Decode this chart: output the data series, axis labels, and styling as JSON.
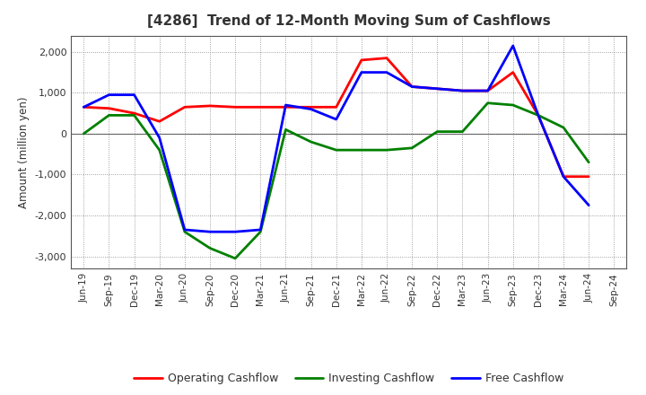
{
  "title": "[4286]  Trend of 12-Month Moving Sum of Cashflows",
  "ylabel": "Amount (million yen)",
  "x_labels": [
    "Jun-19",
    "Sep-19",
    "Dec-19",
    "Mar-20",
    "Jun-20",
    "Sep-20",
    "Dec-20",
    "Mar-21",
    "Jun-21",
    "Sep-21",
    "Dec-21",
    "Mar-22",
    "Jun-22",
    "Sep-22",
    "Dec-22",
    "Mar-23",
    "Jun-23",
    "Sep-23",
    "Dec-23",
    "Mar-24",
    "Jun-24",
    "Sep-24"
  ],
  "operating_cashflow": [
    650,
    620,
    500,
    300,
    650,
    680,
    650,
    650,
    650,
    650,
    650,
    1800,
    1850,
    1150,
    1100,
    1050,
    1050,
    1500,
    450,
    -1050,
    -1050,
    null
  ],
  "investing_cashflow": [
    0,
    450,
    450,
    -400,
    -2400,
    -2800,
    -3050,
    -2400,
    100,
    -200,
    -400,
    -400,
    -400,
    -350,
    50,
    50,
    750,
    700,
    450,
    150,
    -700,
    null
  ],
  "free_cashflow": [
    650,
    950,
    950,
    -100,
    -2350,
    -2400,
    -2400,
    -2350,
    700,
    600,
    350,
    1500,
    1500,
    1150,
    1100,
    1050,
    1050,
    2150,
    450,
    -1050,
    -1750,
    null
  ],
  "line_colors": {
    "operating": "#ff0000",
    "investing": "#008000",
    "free": "#0000ff"
  },
  "line_width": 2.0,
  "ylim": [
    -3300,
    2400
  ],
  "yticks": [
    -3000,
    -2000,
    -1000,
    0,
    1000,
    2000
  ],
  "bg_color": "#ffffff",
  "plot_bg_color": "#ffffff",
  "grid_color": "#888888",
  "legend_labels": [
    "Operating Cashflow",
    "Investing Cashflow",
    "Free Cashflow"
  ],
  "title_color": "#333333",
  "tick_color": "#333333"
}
